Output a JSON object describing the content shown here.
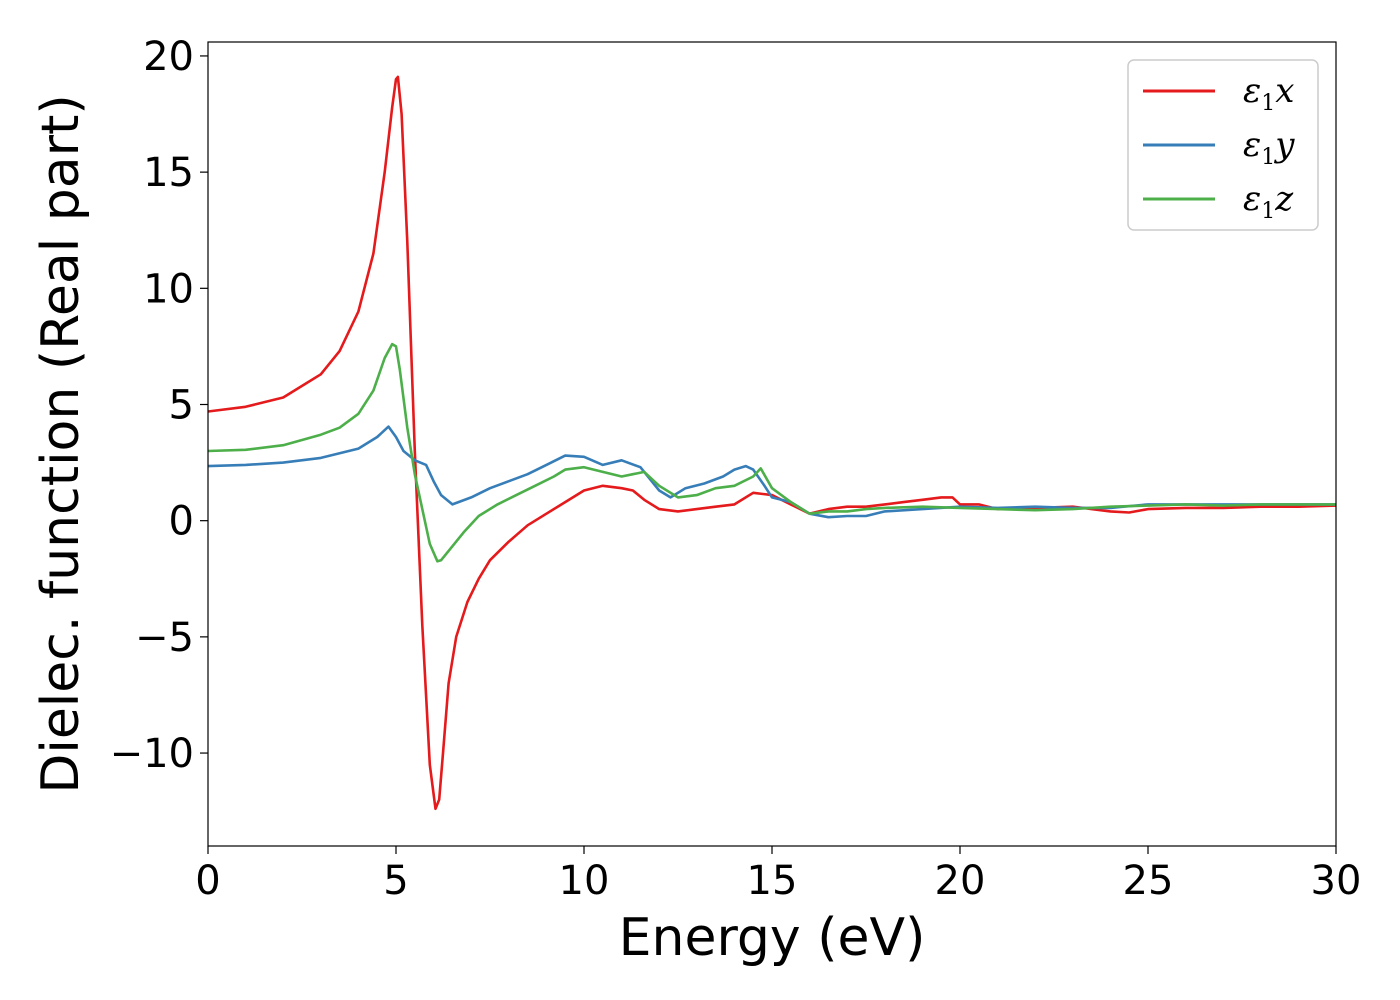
{
  "chart_data": {
    "type": "line",
    "title": "",
    "xlabel": "Energy (eV)",
    "ylabel": "Dielec. function (Real part)",
    "xlim": [
      0,
      30
    ],
    "ylim": [
      -14,
      20.6
    ],
    "xticks": [
      0,
      5,
      10,
      15,
      20,
      25,
      30
    ],
    "yticks": [
      -10,
      -5,
      0,
      5,
      10,
      15,
      20
    ],
    "ytick_labels": [
      "−10",
      "−5",
      "0",
      "5",
      "10",
      "15",
      "20"
    ],
    "grid": false,
    "legend_position": "top-right",
    "series": [
      {
        "name": "ε₁x",
        "legend_base": "ε",
        "legend_sub": "1",
        "legend_var": "x",
        "color": "#e41a1c",
        "x": [
          0,
          1,
          2,
          3,
          3.5,
          4,
          4.4,
          4.7,
          4.9,
          5.0,
          5.05,
          5.15,
          5.3,
          5.5,
          5.7,
          5.9,
          6.05,
          6.15,
          6.25,
          6.4,
          6.6,
          6.9,
          7.2,
          7.5,
          8.0,
          8.5,
          9.0,
          9.5,
          10.0,
          10.5,
          11.0,
          11.3,
          11.6,
          12.0,
          12.5,
          13.0,
          13.5,
          14.0,
          14.5,
          15.0,
          15.5,
          16.0,
          16.5,
          17.0,
          17.5,
          18.0,
          18.5,
          19.0,
          19.5,
          19.8,
          20.0,
          20.5,
          21.0,
          22.0,
          23.0,
          24.0,
          24.5,
          25.0,
          26.0,
          27.0,
          28.0,
          29.0,
          30.0
        ],
        "y": [
          4.7,
          4.9,
          5.3,
          6.3,
          7.3,
          9.0,
          11.5,
          15.0,
          17.8,
          19.0,
          19.1,
          17.5,
          12.0,
          3.0,
          -4.5,
          -10.5,
          -12.4,
          -12.0,
          -10.0,
          -7.0,
          -5.0,
          -3.5,
          -2.5,
          -1.7,
          -0.9,
          -0.2,
          0.3,
          0.8,
          1.3,
          1.5,
          1.4,
          1.3,
          0.9,
          0.5,
          0.4,
          0.5,
          0.6,
          0.7,
          1.2,
          1.1,
          0.7,
          0.3,
          0.5,
          0.6,
          0.6,
          0.7,
          0.8,
          0.9,
          1.0,
          1.0,
          0.7,
          0.7,
          0.5,
          0.55,
          0.6,
          0.4,
          0.35,
          0.5,
          0.55,
          0.55,
          0.6,
          0.6,
          0.65
        ]
      },
      {
        "name": "ε₁y",
        "legend_base": "ε",
        "legend_sub": "1",
        "legend_var": "y",
        "color": "#377eb8",
        "x": [
          0,
          1,
          2,
          3,
          4,
          4.5,
          4.8,
          5.0,
          5.2,
          5.5,
          5.8,
          6.0,
          6.2,
          6.5,
          7.0,
          7.5,
          8.0,
          8.5,
          9.0,
          9.5,
          10.0,
          10.5,
          11.0,
          11.5,
          12.0,
          12.3,
          12.7,
          13.2,
          13.7,
          14.0,
          14.3,
          14.5,
          14.8,
          15.0,
          15.5,
          16.0,
          16.5,
          17.0,
          17.5,
          18.0,
          19.0,
          20.0,
          21.0,
          22.0,
          23.0,
          24.0,
          25.0,
          26.0,
          27.0,
          28.0,
          29.0,
          30.0
        ],
        "y": [
          2.35,
          2.4,
          2.5,
          2.7,
          3.1,
          3.6,
          4.05,
          3.6,
          3.0,
          2.6,
          2.4,
          1.7,
          1.1,
          0.7,
          1.0,
          1.4,
          1.7,
          2.0,
          2.4,
          2.8,
          2.75,
          2.4,
          2.6,
          2.3,
          1.3,
          1.0,
          1.4,
          1.6,
          1.9,
          2.2,
          2.35,
          2.2,
          1.5,
          1.0,
          0.8,
          0.3,
          0.15,
          0.2,
          0.2,
          0.4,
          0.5,
          0.6,
          0.55,
          0.6,
          0.55,
          0.55,
          0.7,
          0.7,
          0.7,
          0.7,
          0.7,
          0.7
        ]
      },
      {
        "name": "ε₁z",
        "legend_base": "ε",
        "legend_sub": "1",
        "legend_var": "z",
        "color": "#4daf4a",
        "x": [
          0,
          1,
          2,
          3,
          3.5,
          4,
          4.4,
          4.7,
          4.9,
          5.0,
          5.1,
          5.3,
          5.5,
          5.7,
          5.9,
          6.1,
          6.2,
          6.4,
          6.8,
          7.2,
          7.7,
          8.2,
          8.7,
          9.2,
          9.5,
          10.0,
          10.5,
          11.0,
          11.3,
          11.6,
          12.0,
          12.5,
          13.0,
          13.5,
          14.0,
          14.5,
          14.7,
          15.0,
          15.5,
          16.0,
          16.5,
          17.0,
          17.5,
          18.0,
          19.0,
          20.0,
          21.0,
          22.0,
          23.0,
          24.0,
          25.0,
          26.0,
          27.0,
          28.0,
          29.0,
          30.0
        ],
        "y": [
          3.0,
          3.05,
          3.25,
          3.7,
          4.0,
          4.6,
          5.6,
          7.0,
          7.6,
          7.5,
          6.5,
          4.0,
          2.0,
          0.5,
          -1.0,
          -1.75,
          -1.7,
          -1.3,
          -0.5,
          0.2,
          0.7,
          1.1,
          1.5,
          1.9,
          2.2,
          2.3,
          2.1,
          1.9,
          2.0,
          2.1,
          1.5,
          1.0,
          1.1,
          1.4,
          1.5,
          1.9,
          2.25,
          1.4,
          0.8,
          0.3,
          0.4,
          0.4,
          0.5,
          0.55,
          0.6,
          0.55,
          0.5,
          0.45,
          0.5,
          0.6,
          0.65,
          0.7,
          0.65,
          0.7,
          0.7,
          0.7
        ]
      }
    ]
  }
}
